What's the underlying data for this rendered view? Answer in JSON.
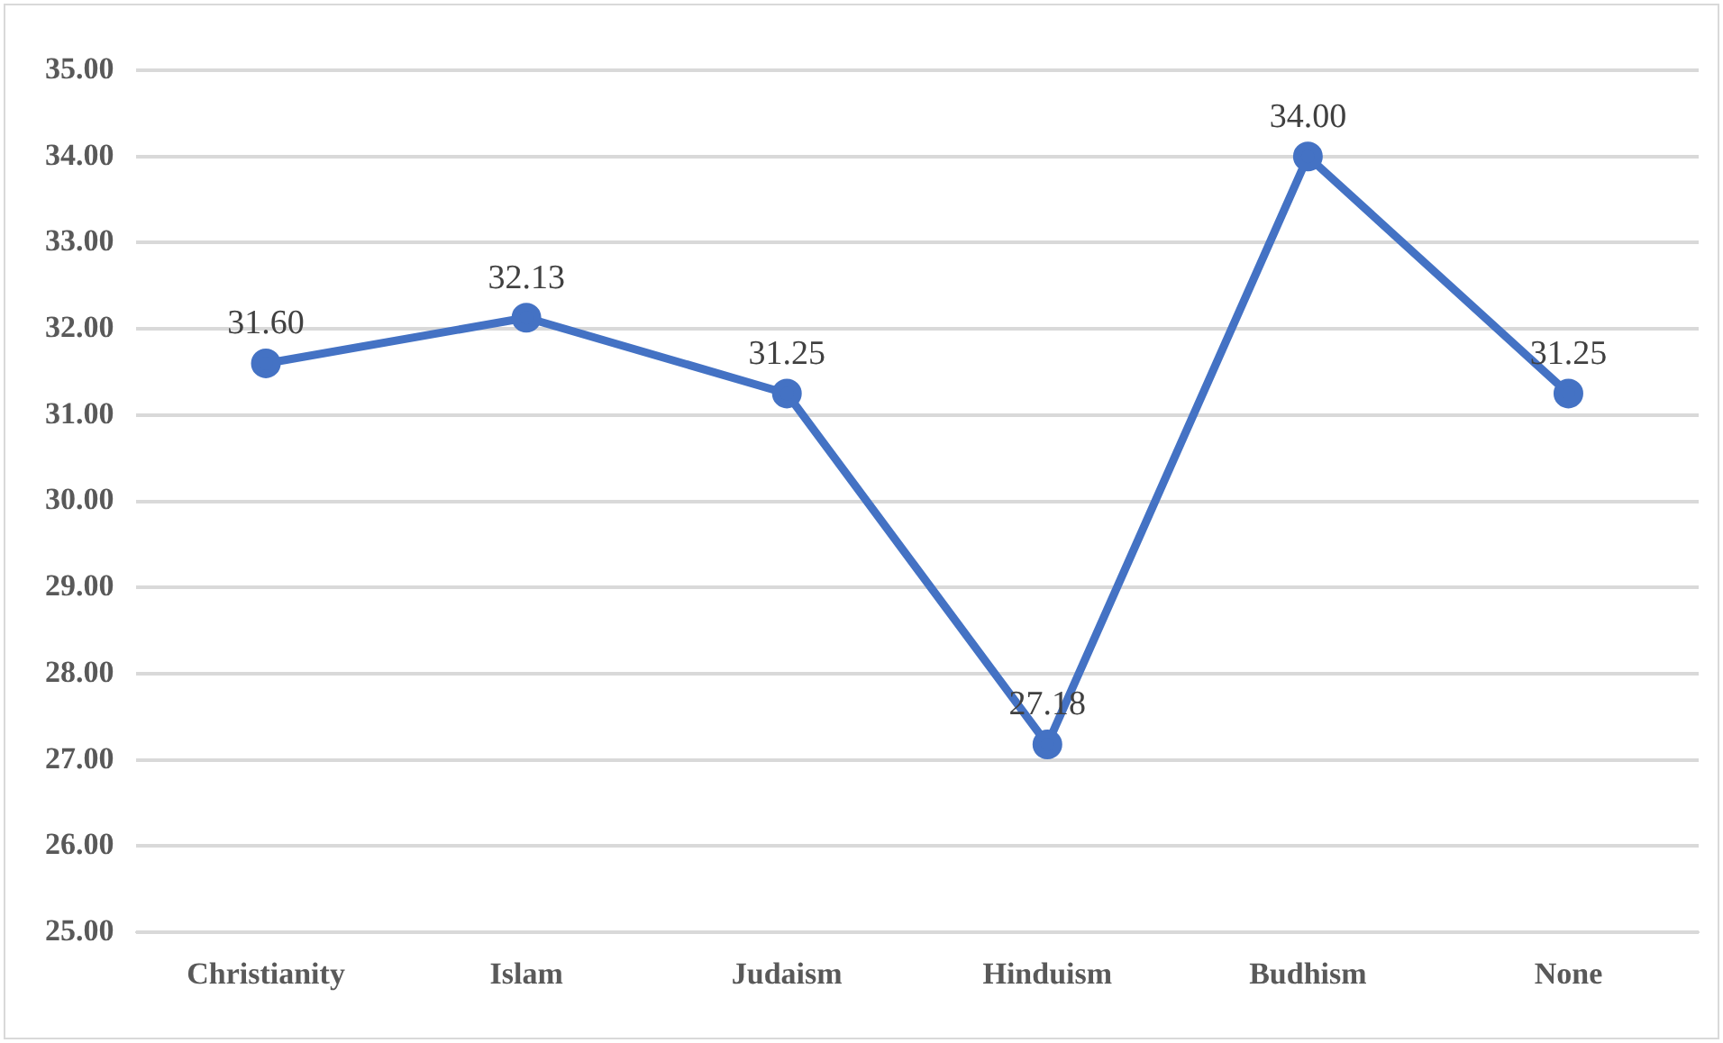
{
  "chart_data": {
    "type": "line",
    "categories": [
      "Christianity",
      "Islam",
      "Judaism",
      "Hinduism",
      "Budhism",
      "None"
    ],
    "series": [
      {
        "color": "#4472c4",
        "values": [
          31.6,
          32.13,
          31.25,
          27.18,
          34.0,
          31.25
        ],
        "value_labels": [
          "31.60",
          "32.13",
          "31.25",
          "27.18",
          "34.00",
          "31.25"
        ]
      }
    ],
    "ylim": [
      25,
      35
    ],
    "yticks": [
      {
        "value": 25,
        "label": "25.00"
      },
      {
        "value": 26,
        "label": "26.00"
      },
      {
        "value": 27,
        "label": "27.00"
      },
      {
        "value": 28,
        "label": "28.00"
      },
      {
        "value": 29,
        "label": "29.00"
      },
      {
        "value": 30,
        "label": "30.00"
      },
      {
        "value": 31,
        "label": "31.00"
      },
      {
        "value": 32,
        "label": "32.00"
      },
      {
        "value": 33,
        "label": "33.00"
      },
      {
        "value": 34,
        "label": "34.00"
      },
      {
        "value": 35,
        "label": "35.00"
      }
    ],
    "grid": "y",
    "legend": false,
    "marker": "circle",
    "line_style": "solid"
  }
}
